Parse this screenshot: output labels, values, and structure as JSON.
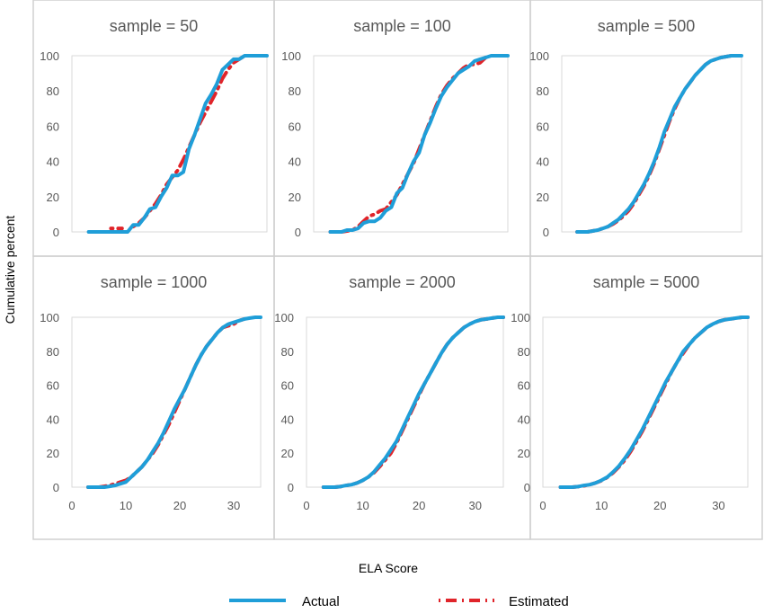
{
  "ylabel": "Cumulative percent",
  "xlabel": "ELA Score",
  "legend": {
    "actual": "Actual",
    "estimated": "Estimated"
  },
  "colors": {
    "actual": "#1f9ed8",
    "estimated": "#e0242a",
    "panel_border": "#d0d0d0",
    "plot_border": "#d9d9d9"
  },
  "chart_data": [
    {
      "type": "line",
      "title": "sample = 50",
      "xlim": [
        0,
        35
      ],
      "ylim": [
        0,
        100
      ],
      "yticks": [
        "0",
        "20",
        "40",
        "60",
        "80",
        "100"
      ],
      "xticks": [],
      "x": [
        3,
        4,
        5,
        6,
        7,
        8,
        9,
        10,
        11,
        12,
        13,
        14,
        15,
        16,
        17,
        18,
        19,
        20,
        21,
        22,
        23,
        24,
        25,
        26,
        27,
        28,
        29,
        30,
        31,
        32,
        33,
        34,
        35
      ],
      "series": [
        {
          "name": "Actual",
          "values": [
            0,
            0,
            0,
            0,
            0,
            0,
            0,
            0,
            4,
            4,
            8,
            13,
            14,
            20,
            25,
            32,
            32,
            34,
            47,
            55,
            64,
            73,
            78,
            84,
            92,
            95,
            98,
            98,
            100,
            100,
            100,
            100,
            100
          ]
        },
        {
          "name": "Estimated",
          "values": [
            null,
            null,
            null,
            null,
            2,
            2,
            2,
            null,
            3,
            5,
            8,
            12,
            16,
            21,
            27,
            31,
            35,
            41,
            48,
            55,
            62,
            68,
            74,
            80,
            87,
            92,
            96,
            98,
            100,
            null,
            null,
            null,
            null
          ]
        }
      ]
    },
    {
      "type": "line",
      "title": "sample = 100",
      "xlim": [
        0,
        35
      ],
      "ylim": [
        0,
        100
      ],
      "yticks": [
        "0",
        "20",
        "40",
        "60",
        "80",
        "100"
      ],
      "xticks": [],
      "x": [
        3,
        4,
        5,
        6,
        7,
        8,
        9,
        10,
        11,
        12,
        13,
        14,
        15,
        16,
        17,
        18,
        19,
        20,
        21,
        22,
        23,
        24,
        25,
        26,
        27,
        28,
        29,
        30,
        31,
        32,
        33,
        34,
        35
      ],
      "series": [
        {
          "name": "Actual",
          "values": [
            0,
            0,
            0,
            1,
            1,
            2,
            5,
            6,
            6,
            8,
            12,
            14,
            22,
            25,
            33,
            40,
            45,
            55,
            62,
            70,
            77,
            82,
            86,
            90,
            92,
            94,
            97,
            98,
            99,
            100,
            100,
            100,
            100
          ]
        },
        {
          "name": "Estimated",
          "values": [
            0,
            0,
            0,
            0.5,
            1,
            3,
            6,
            9,
            10,
            12,
            13,
            17,
            21,
            27,
            33,
            39,
            47,
            55,
            63,
            71,
            78,
            83,
            87,
            90,
            93,
            95,
            95,
            96,
            99,
            null,
            null,
            null,
            null
          ]
        }
      ]
    },
    {
      "type": "line",
      "title": "sample = 500",
      "xlim": [
        0,
        35
      ],
      "ylim": [
        0,
        100
      ],
      "yticks": [
        "0",
        "20",
        "40",
        "60",
        "80",
        "100"
      ],
      "xticks": [],
      "x": [
        3,
        4,
        5,
        6,
        7,
        8,
        9,
        10,
        11,
        12,
        13,
        14,
        15,
        16,
        17,
        18,
        19,
        20,
        21,
        22,
        23,
        24,
        25,
        26,
        27,
        28,
        29,
        30,
        31,
        32,
        33,
        34,
        35
      ],
      "series": [
        {
          "name": "Actual",
          "values": [
            0,
            0,
            0,
            0.5,
            1,
            2,
            3,
            5,
            7,
            10,
            13,
            17,
            22,
            27,
            33,
            40,
            48,
            57,
            64,
            71,
            76,
            81,
            85,
            89,
            92,
            95,
            97,
            98,
            99,
            99.5,
            100,
            100,
            100
          ]
        },
        {
          "name": "Estimated",
          "values": [
            0,
            0,
            0,
            0.5,
            1,
            2,
            3,
            4.5,
            6.5,
            9,
            12,
            16,
            21,
            26,
            32,
            39,
            47,
            55,
            63,
            70,
            76,
            81,
            85,
            89,
            92,
            95,
            97,
            98,
            99,
            99.5,
            100,
            100,
            100
          ]
        }
      ]
    },
    {
      "type": "line",
      "title": "sample = 1000",
      "xlim": [
        0,
        35
      ],
      "ylim": [
        0,
        100
      ],
      "yticks": [
        "0",
        "20",
        "40",
        "60",
        "80",
        "100"
      ],
      "xticks": [
        "0",
        "10",
        "20",
        "30"
      ],
      "x": [
        3,
        4,
        5,
        6,
        7,
        8,
        9,
        10,
        11,
        12,
        13,
        14,
        15,
        16,
        17,
        18,
        19,
        20,
        21,
        22,
        23,
        24,
        25,
        26,
        27,
        28,
        29,
        30,
        31,
        32,
        33,
        34,
        35
      ],
      "series": [
        {
          "name": "Actual",
          "values": [
            0,
            0,
            0,
            0,
            0.5,
            1,
            2,
            3,
            6,
            9,
            12,
            16,
            21,
            26,
            32,
            39,
            46,
            52,
            58,
            65,
            72,
            78,
            83,
            87,
            91,
            94,
            96,
            97,
            98,
            99,
            99.5,
            100,
            100
          ]
        },
        {
          "name": "Estimated",
          "values": [
            0,
            0,
            0,
            0.5,
            1,
            2,
            3,
            4,
            6,
            9,
            12,
            16,
            20,
            25,
            31,
            37,
            44,
            51,
            58,
            65,
            72,
            78,
            83,
            87,
            91,
            94,
            95,
            96,
            98,
            99,
            null,
            null,
            null
          ]
        }
      ]
    },
    {
      "type": "line",
      "title": "sample = 2000",
      "xlim": [
        0,
        35
      ],
      "ylim": [
        0,
        100
      ],
      "yticks": [
        "0",
        "20",
        "40",
        "60",
        "80",
        "100"
      ],
      "xticks": [
        "0",
        "10",
        "20",
        "30"
      ],
      "x": [
        3,
        4,
        5,
        6,
        7,
        8,
        9,
        10,
        11,
        12,
        13,
        14,
        15,
        16,
        17,
        18,
        19,
        20,
        21,
        22,
        23,
        24,
        25,
        26,
        27,
        28,
        29,
        30,
        31,
        32,
        33,
        34,
        35
      ],
      "series": [
        {
          "name": "Actual",
          "values": [
            0,
            0,
            0,
            0.3,
            1,
            1.5,
            2.5,
            4,
            6,
            9,
            13,
            17,
            22,
            27,
            34,
            41,
            48,
            55,
            61,
            67,
            73,
            79,
            84,
            88,
            91,
            94,
            96,
            97.5,
            98.5,
            99,
            99.5,
            100,
            100
          ]
        },
        {
          "name": "Estimated",
          "values": [
            0,
            0,
            0,
            0.3,
            1,
            1.5,
            2.5,
            4,
            6,
            8.5,
            12,
            16,
            20,
            26,
            33,
            40,
            47,
            54,
            61,
            67,
            73,
            79,
            84,
            88,
            91,
            94,
            96,
            97.5,
            98.5,
            99,
            99.5,
            100,
            100
          ]
        }
      ]
    },
    {
      "type": "line",
      "title": "sample = 5000",
      "xlim": [
        0,
        35
      ],
      "ylim": [
        0,
        100
      ],
      "yticks": [
        "0",
        "20",
        "40",
        "60",
        "80",
        "100"
      ],
      "xticks": [
        "0",
        "10",
        "20",
        "30"
      ],
      "x": [
        3,
        4,
        5,
        6,
        7,
        8,
        9,
        10,
        11,
        12,
        13,
        14,
        15,
        16,
        17,
        18,
        19,
        20,
        21,
        22,
        23,
        24,
        25,
        26,
        27,
        28,
        29,
        30,
        31,
        32,
        33,
        34,
        35
      ],
      "series": [
        {
          "name": "Actual",
          "values": [
            0,
            0,
            0,
            0.3,
            1,
            1.5,
            2.5,
            4,
            6,
            9,
            12.5,
            17,
            22,
            28,
            34,
            41,
            48,
            55,
            62,
            68,
            74,
            80,
            84,
            88,
            91,
            94,
            96,
            97.5,
            98.5,
            99,
            99.5,
            100,
            100
          ]
        },
        {
          "name": "Estimated",
          "values": [
            0,
            0,
            0,
            0.3,
            0.8,
            1.5,
            2.5,
            3.8,
            5.8,
            8.5,
            12,
            16,
            21,
            27,
            33,
            40,
            47,
            54,
            61,
            68,
            74,
            79,
            84,
            88,
            91,
            94,
            96,
            97.5,
            98.5,
            99,
            99.5,
            100,
            100
          ]
        }
      ]
    }
  ]
}
